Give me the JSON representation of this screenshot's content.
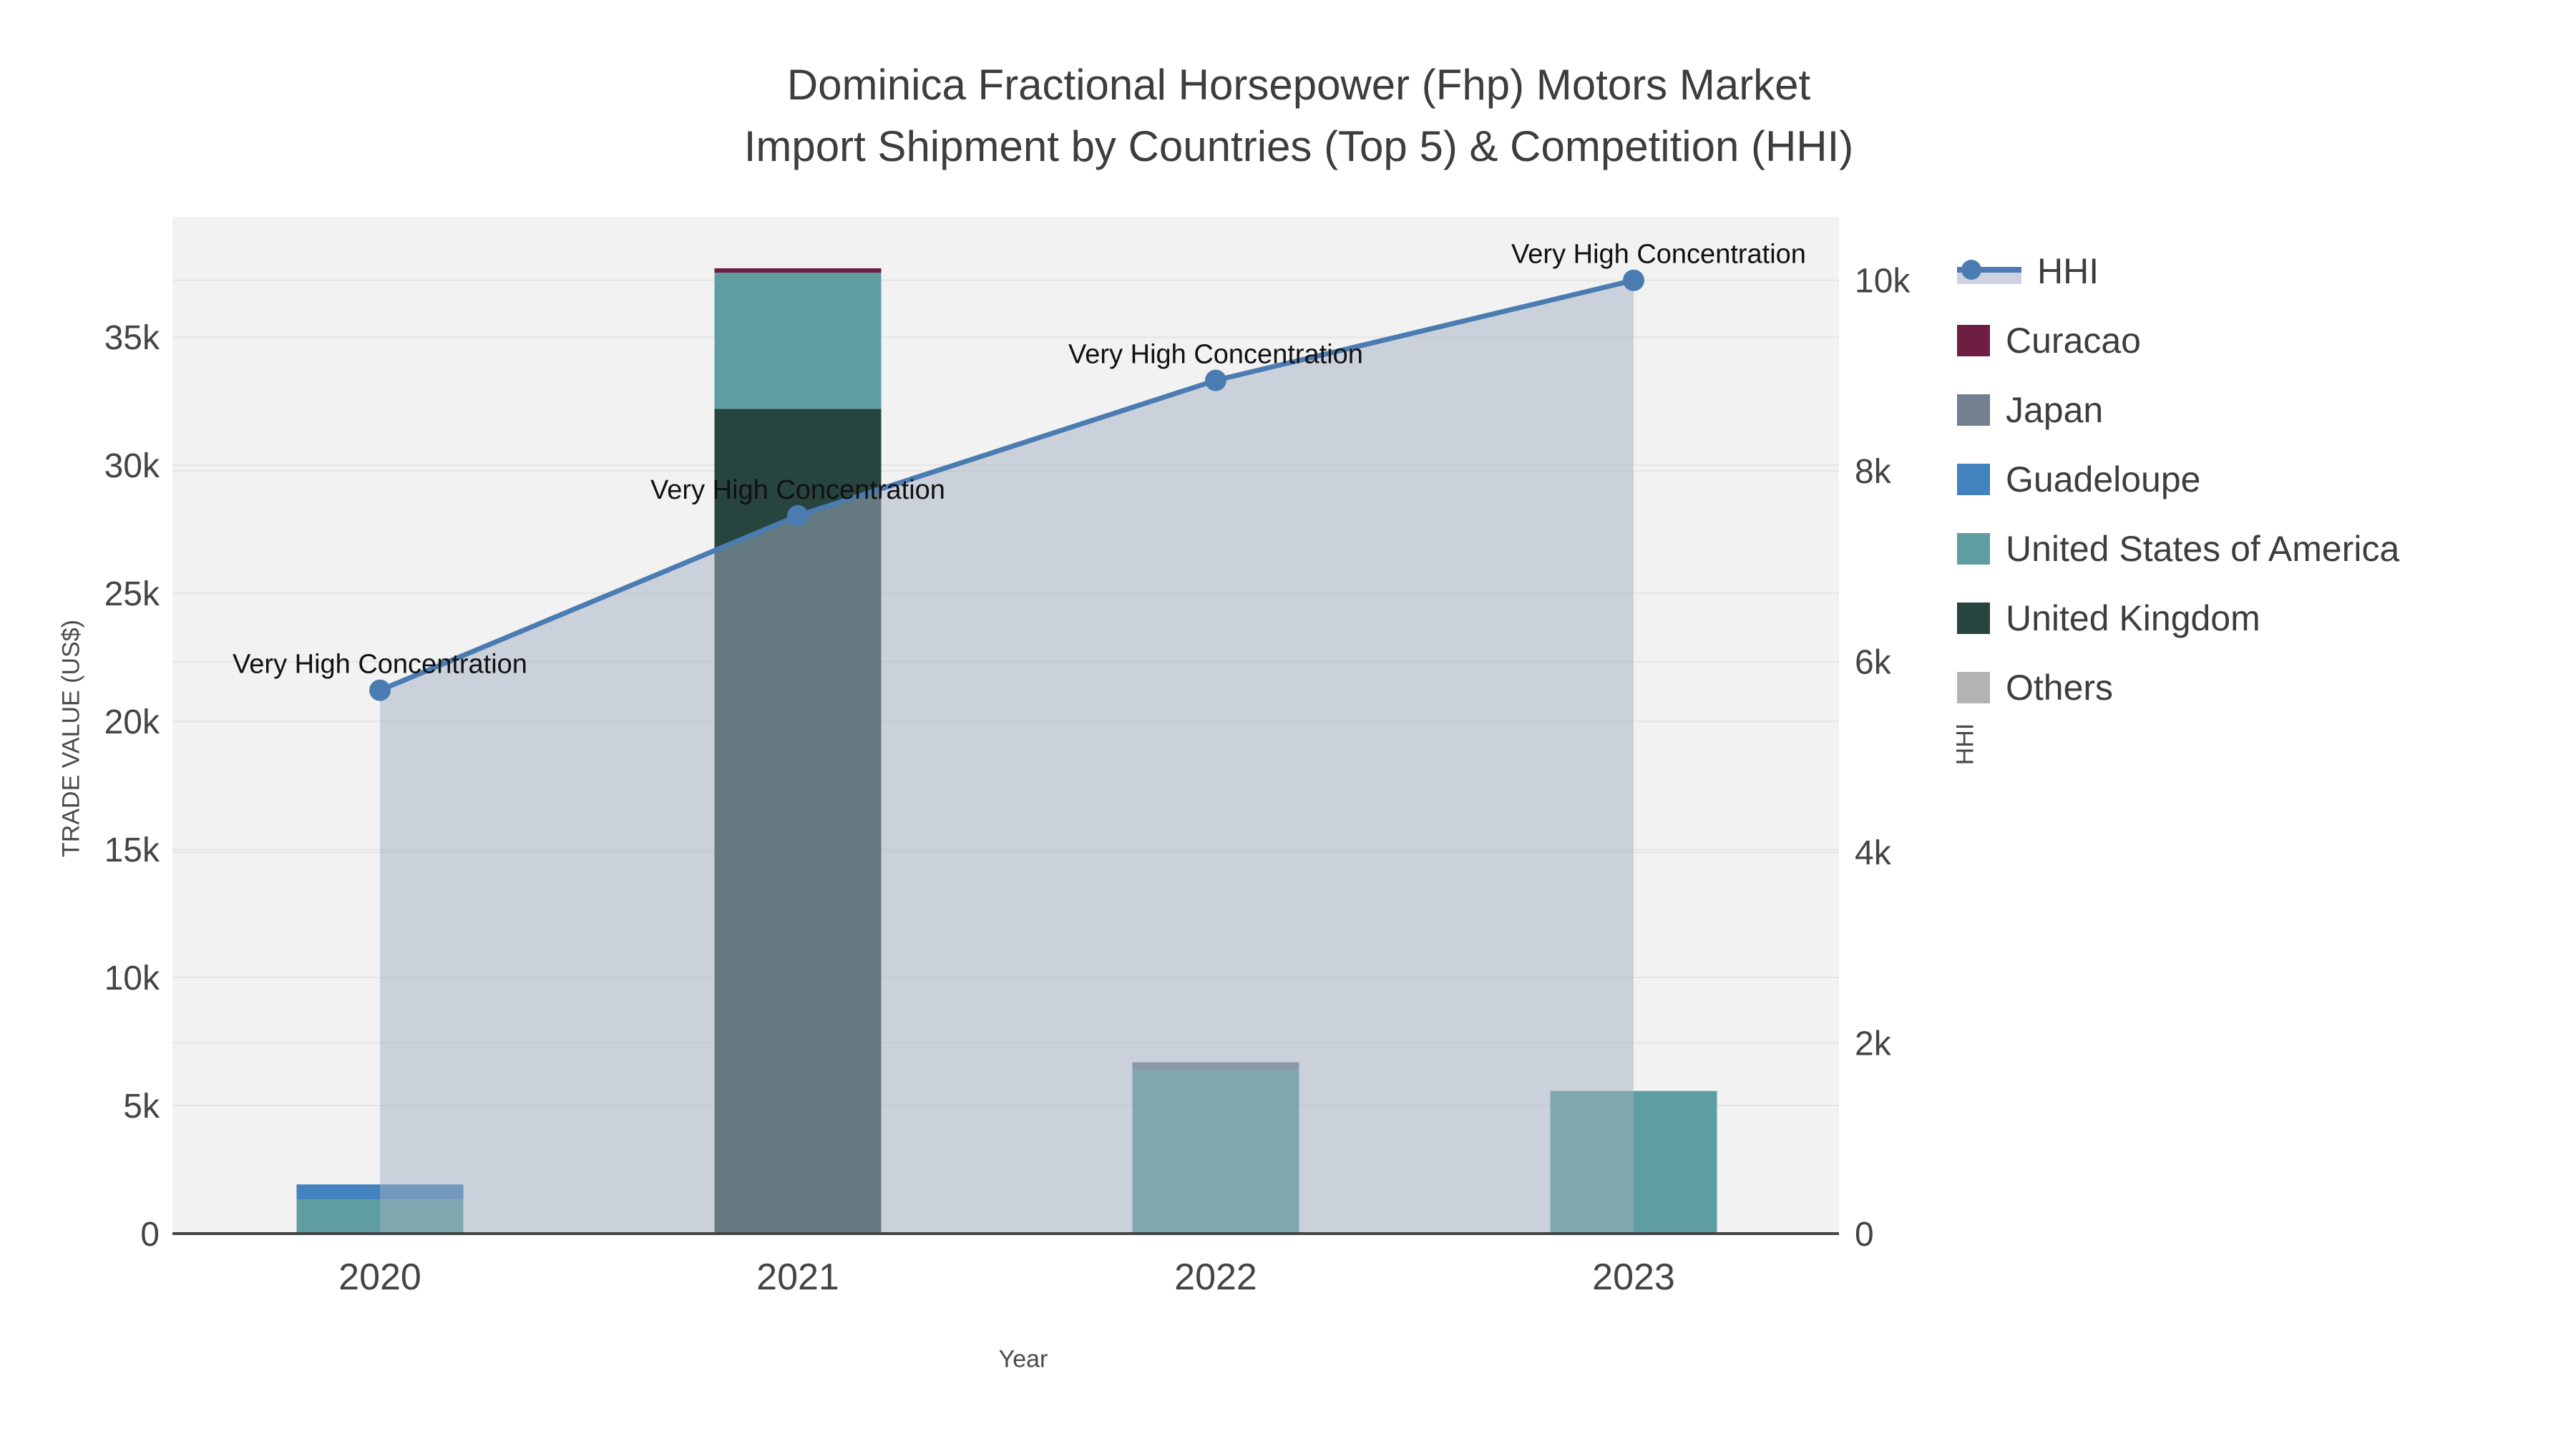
{
  "title": {
    "line1": "Dominica Fractional Horsepower (Fhp) Motors Market",
    "line2": "Import Shipment by Countries (Top 5) & Competition (HHI)"
  },
  "chart_data": {
    "type": "bar+line",
    "categories": [
      "2020",
      "2021",
      "2022",
      "2023"
    ],
    "bar_series": [
      {
        "name": "United Kingdom",
        "color": "#27443f",
        "values": [
          0,
          32200,
          0,
          0
        ]
      },
      {
        "name": "United States of America",
        "color": "#5f9ea0",
        "values": [
          1340,
          5320,
          6360,
          5570
        ]
      },
      {
        "name": "Guadeloupe",
        "color": "#4282be",
        "values": [
          580,
          0,
          0,
          0
        ]
      },
      {
        "name": "Japan",
        "color": "#72808f",
        "values": [
          0,
          0,
          330,
          0
        ]
      },
      {
        "name": "Curacao",
        "color": "#6e1e41",
        "values": [
          0,
          170,
          0,
          0
        ]
      },
      {
        "name": "Others",
        "color": "#b3b3b3",
        "values": [
          0,
          0,
          0,
          0
        ]
      }
    ],
    "line_series": {
      "name": "HHI",
      "axis": "right",
      "color": "#4a7cb1",
      "fill_color": "rgba(164,175,194,0.5)",
      "values": [
        5700,
        7530,
        8950,
        10000
      ]
    },
    "annotations": {
      "text": "Very High Concentration",
      "dx": [
        0,
        0,
        0,
        35
      ],
      "dy": [
        -24,
        -24,
        -24,
        -24
      ]
    },
    "left_axis": {
      "title": "TRADE VALUE (US$)",
      "ticks": [
        0,
        5000,
        10000,
        15000,
        20000,
        25000,
        30000,
        35000
      ],
      "range": [
        0,
        39700
      ]
    },
    "right_axis": {
      "title": "HHI",
      "ticks": [
        0,
        2000,
        4000,
        6000,
        8000,
        10000
      ],
      "range": [
        0,
        10666
      ]
    },
    "x_axis": {
      "title": "Year"
    },
    "grid": true,
    "legend_position": "right"
  },
  "legend": {
    "items": [
      {
        "label": "HHI",
        "color": "#4a7cb1",
        "type": "line"
      },
      {
        "label": "Curacao",
        "color": "#6e1e41",
        "type": "swatch"
      },
      {
        "label": "Japan",
        "color": "#72808f",
        "type": "swatch"
      },
      {
        "label": "Guadeloupe",
        "color": "#4282be",
        "type": "swatch"
      },
      {
        "label": "United States of America",
        "color": "#5f9ea0",
        "type": "swatch"
      },
      {
        "label": "United Kingdom",
        "color": "#27443f",
        "type": "swatch"
      },
      {
        "label": "Others",
        "color": "#b3b3b3",
        "type": "swatch"
      }
    ]
  },
  "colors": {
    "plot_bg": "#f2f2f2",
    "grid": "#e4e4e4",
    "axis_line": "#444444",
    "tick_text": "#444444",
    "title_text": "#3d3d3d",
    "annotation_text": "#111111"
  }
}
